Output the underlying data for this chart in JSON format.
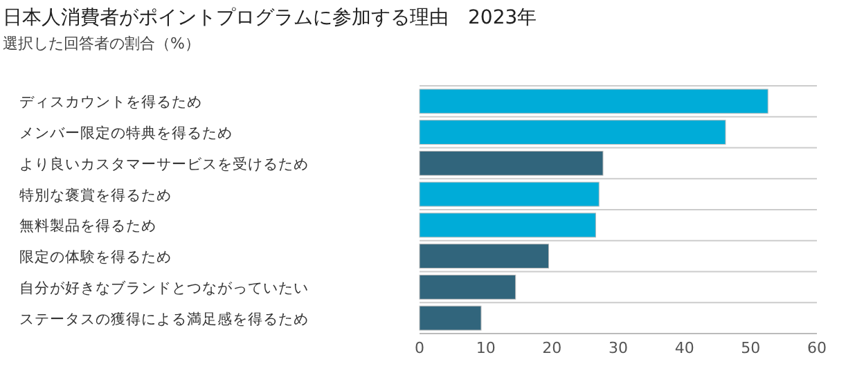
{
  "chart_data": {
    "type": "bar",
    "orientation": "horizontal",
    "title": "日本人消費者がポイントプログラムに参加する理由　2023年",
    "subtitle": "選択した回答者の割合（%）",
    "categories": [
      "ディスカウントを得るため",
      "メンバー限定の特典を得るため",
      "より良いカスタマーサービスを受けるため",
      "特別な褒賞を得るため",
      "無料製品を得るため",
      "限定の体験を得るため",
      "自分が好きなブランドとつながっていたい",
      "ステータスの獲得による満足感を得るため"
    ],
    "values": [
      52.6,
      46.2,
      27.7,
      27.1,
      26.6,
      19.5,
      14.5,
      9.3
    ],
    "colors": [
      "#00acd8",
      "#00acd8",
      "#31657c",
      "#00acd8",
      "#00acd8",
      "#31657c",
      "#31657c",
      "#31657c"
    ],
    "xlim": [
      0,
      60
    ],
    "xticks": [
      0,
      10,
      20,
      30,
      40,
      50,
      60
    ],
    "grid": "y"
  }
}
